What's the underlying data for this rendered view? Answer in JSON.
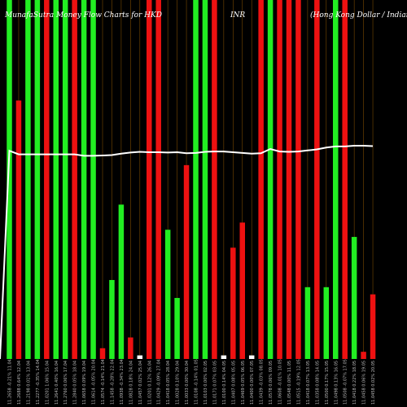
{
  "title": {
    "left": "MunafaSutra Money Flow Charts for HKD",
    "middle": "INR",
    "right": "(Hong Kong Dollar / Indian Rupee)"
  },
  "colors": {
    "background": "#000000",
    "up": "#22ee22",
    "down": "#ee1111",
    "line": "#ffffff",
    "separator": "#7a4a00"
  },
  "chart_data": {
    "type": "bar",
    "description_free": true,
    "ylim": [
      0,
      1
    ],
    "dates": [
      "11.04 Fri",
      "12.04 Sat",
      "13.04 Sun",
      "14.04 Mon",
      "15.04 Tue",
      "16.04 Wed",
      "17.04 Thu",
      "18.04 Fri",
      "19.04 Sat",
      "20.04 Sun",
      "21.04 Mon",
      "22.04 Tue",
      "23.04 Wed",
      "24.04 Thu",
      "25.04 Fri",
      "26.04 Sat",
      "27.04 Sun",
      "28.04 Mon",
      "29.04 Tue",
      "30.04 Wed",
      "01.05 Thu",
      "02.05 Fri",
      "03.05 Sat",
      "04.05 Sun",
      "05.05 Mon",
      "06.05 Tue",
      "07.05 Wed",
      "08.05 Thu",
      "09.05 Fri",
      "10.05 Sat",
      "11.05 Sun",
      "12.05 Mon",
      "13.05 Tue",
      "14.05 Wed",
      "15.05 Thu",
      "16.05 Fri",
      "17.05 Sat",
      "18.05 Sun",
      "19.05 Mon",
      "20.05 Tue"
    ],
    "tick_labels": [
      "11.2658 -0.21% 11.04",
      "11.2688 0.64% 12.04",
      "11.2198 0.01% 13.04",
      "11.2277 -0.35% 14.04",
      "11.0201 1.06% 15.04",
      "11.2641 0.40% 16.04",
      "11.2760 0.06% 17.04",
      "11.2840 0.05% 18.04",
      "11.0658 0.09% 19.04",
      "11.0614 -0.05% 20.04",
      "11.0574 -0.14% 21.04",
      "11.1458 -0.28% 22.04",
      "11.0938 -0.34% 23.04",
      "11.0828 0.18% 24.04",
      "11.0457 0.02% 25.04",
      "11.0201 0.12% 26.04",
      "11.0429 -0.09% 27.04",
      "11.0418 0.05% 28.04",
      "11.0028 0.10% 29.04",
      "11.0033 0.00% 30.04",
      "11.0108 -0.14% 01.05",
      "11.0103 0.00% 02.05",
      "11.0171 0.07% 03.05",
      "11.0100 0.14% 04.05",
      "11.0407 0.08% 05.05",
      "11.0469 0.05% 06.05",
      "11.0400 0.00% 07.05",
      "11.0439 -0.03% 08.05",
      "11.0578 0.06% 09.05",
      "11.0608 -0.01% 10.05",
      "11.0548 0.00% 11.05",
      "11.0515 -0.19% 12.05",
      "11.0418 0.07% 13.05",
      "11.0358 0.08% 14.05",
      "11.0500 0.17% 15.05",
      "11.0498 0.13% 16.05",
      "11.0508 -0.07% 17.05",
      "11.0418 0.22% 18.05",
      "11.0458 0.06% 19.05",
      "11.0458 0.02% 20.05"
    ],
    "bar_types": [
      "up",
      "down",
      "up",
      "up",
      "down",
      "up",
      "up",
      "down",
      "up",
      "up",
      "down",
      "up",
      "up",
      "down",
      "up",
      "down",
      "down",
      "up",
      "up",
      "down",
      "up",
      "up",
      "down",
      "up",
      "down",
      "down",
      "up",
      "down",
      "up",
      "down",
      "down",
      "down",
      "up",
      "down",
      "up",
      "down",
      "down",
      "up",
      "down",
      "down"
    ],
    "bars_up": [
      1,
      0,
      1,
      1,
      0,
      1,
      1,
      0,
      1,
      1,
      0,
      0.22,
      0.43,
      0,
      0.01,
      0,
      0,
      0.36,
      0.17,
      0,
      1,
      1,
      0,
      0.01,
      0,
      0,
      0.01,
      0,
      1,
      0,
      0,
      0,
      0.2,
      0,
      0.2,
      1,
      0,
      0.34,
      0,
      0
    ],
    "bars_down": [
      0,
      0.72,
      0,
      0,
      1,
      0,
      0,
      1,
      0,
      0,
      0.03,
      0,
      0,
      0.06,
      0,
      1,
      1,
      0,
      0,
      0.54,
      0,
      0,
      1,
      0,
      0.31,
      0.38,
      0,
      1,
      0,
      1,
      1,
      1,
      0,
      1,
      0,
      0,
      1,
      0,
      0.02,
      0.18
    ],
    "line": [
      0.58,
      0.57,
      0.57,
      0.57,
      0.57,
      0.57,
      0.57,
      0.57,
      0.566,
      0.566,
      0.567,
      0.568,
      0.572,
      0.575,
      0.577,
      0.576,
      0.576,
      0.575,
      0.576,
      0.573,
      0.574,
      0.577,
      0.578,
      0.578,
      0.576,
      0.574,
      0.572,
      0.573,
      0.585,
      0.578,
      0.577,
      0.578,
      0.581,
      0.584,
      0.589,
      0.592,
      0.592,
      0.594,
      0.594,
      0.593
    ]
  }
}
